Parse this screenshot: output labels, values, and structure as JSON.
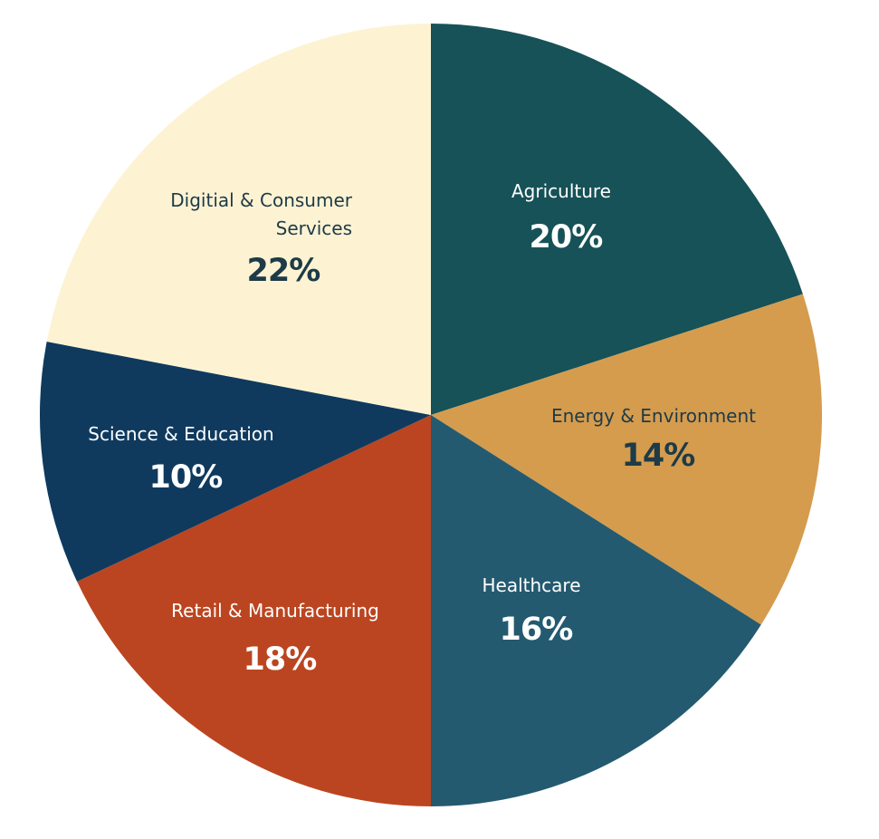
{
  "chart_data": {
    "type": "pie",
    "categories": [
      "Agriculture",
      "Energy & Environment",
      "Healthcare",
      "Retail & Manufacturing",
      "Science & Education",
      "Digitial & Consumer Services"
    ],
    "values": [
      20,
      14,
      16,
      18,
      10,
      22
    ],
    "value_labels": [
      "20%",
      "14%",
      "16%",
      "18%",
      "10%",
      "22%"
    ],
    "colors": [
      "#165257",
      "#d59c4e",
      "#235a70",
      "#bb4520",
      "#0f3a5e",
      "#fdf3d3"
    ]
  }
}
